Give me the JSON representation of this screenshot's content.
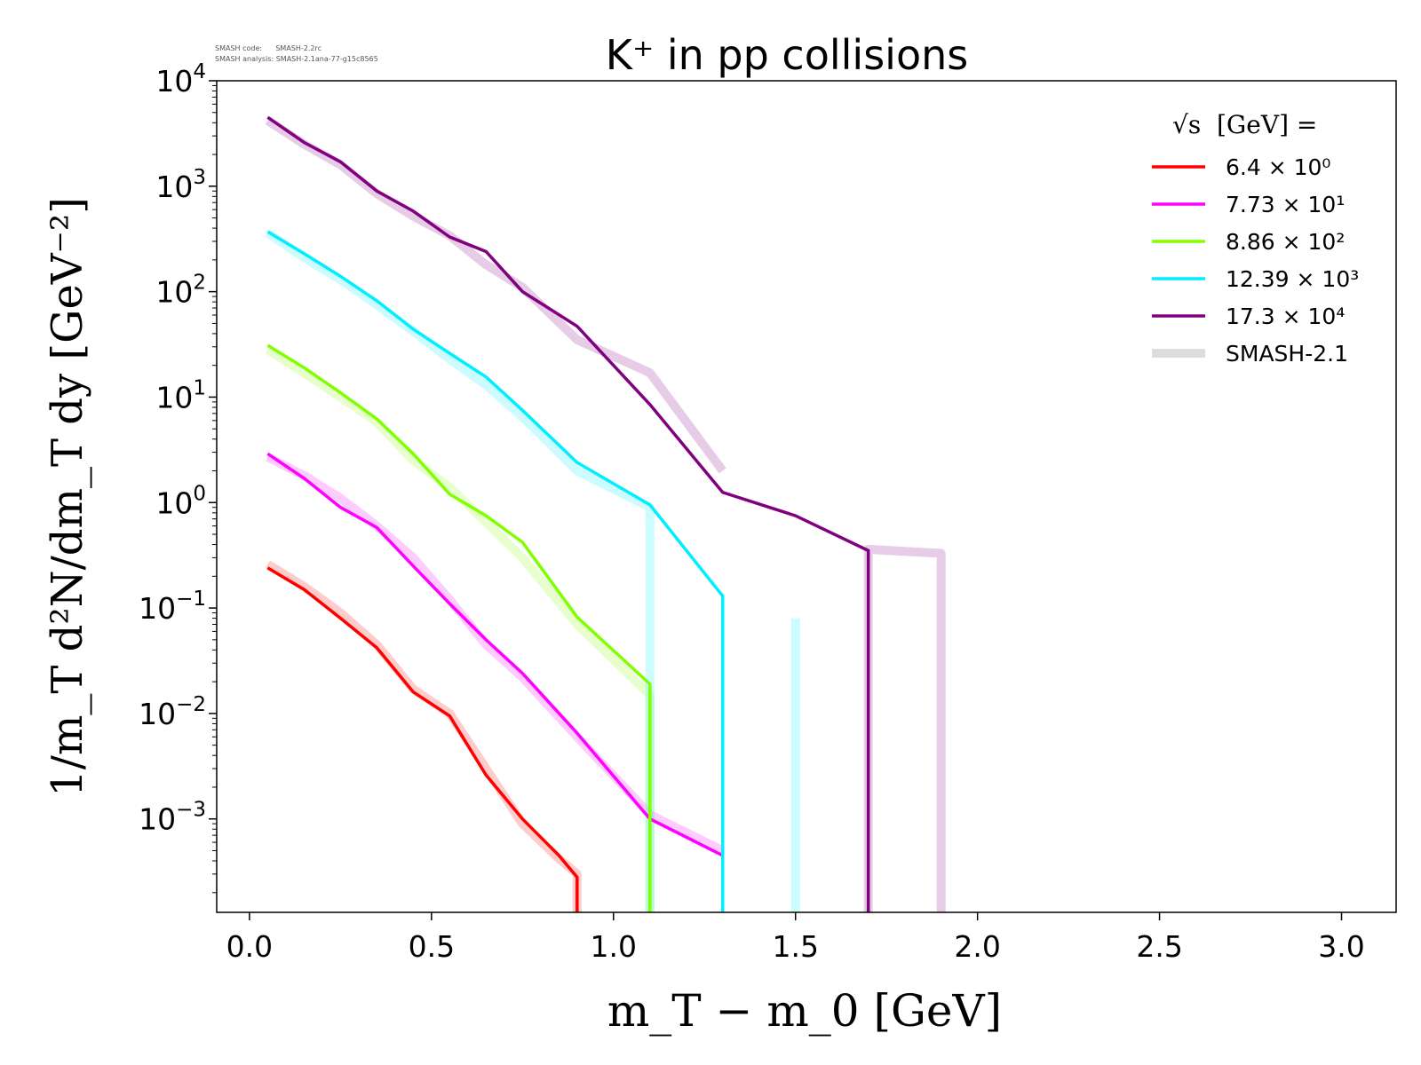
{
  "meta": {
    "code_line": "SMASH code:      SMASH-2.2rc",
    "analysis_line": "SMASH analysis: SMASH-2.1ana-77-g15c8565"
  },
  "chart_data": {
    "type": "line",
    "title": "K⁺ in pp collisions",
    "xlabel": "m_T − m_0 [GeV]",
    "ylabel": "1/m_T d²N/dm_T dy [GeV⁻²]",
    "xlim": [
      -0.09,
      3.15
    ],
    "ylim": [
      0.00013,
      10000
    ],
    "yscale": "log",
    "grid": false,
    "legend_position": "top-right",
    "legend_title": "√s  [GeV] =",
    "x_ticks": [
      {
        "value": 0.0,
        "label": "0.0"
      },
      {
        "value": 0.5,
        "label": "0.5"
      },
      {
        "value": 1.0,
        "label": "1.0"
      },
      {
        "value": 1.5,
        "label": "1.5"
      },
      {
        "value": 2.0,
        "label": "2.0"
      },
      {
        "value": 2.5,
        "label": "2.5"
      },
      {
        "value": 3.0,
        "label": "3.0"
      }
    ],
    "y_ticks": [
      {
        "value": 10000,
        "base": "10",
        "exp": "4"
      },
      {
        "value": 1000,
        "base": "10",
        "exp": "3"
      },
      {
        "value": 100,
        "base": "10",
        "exp": "2"
      },
      {
        "value": 10,
        "base": "10",
        "exp": "1"
      },
      {
        "value": 1,
        "base": "10",
        "exp": "0"
      },
      {
        "value": 0.1,
        "base": "10",
        "exp": "−1"
      },
      {
        "value": 0.01,
        "base": "10",
        "exp": "−2"
      },
      {
        "value": 0.001,
        "base": "10",
        "exp": "−3"
      }
    ],
    "series": [
      {
        "name": "6.4 × 10⁰",
        "color": "#ff0000",
        "x": [
          0.05,
          0.15,
          0.25,
          0.35,
          0.45,
          0.55,
          0.65,
          0.75,
          0.85,
          0.9,
          0.9
        ],
        "y": [
          0.24,
          0.15,
          0.08,
          0.042,
          0.016,
          0.0095,
          0.0026,
          0.001,
          0.00045,
          0.00028,
          0.00013
        ],
        "ref_x": [
          0.05,
          0.15,
          0.25,
          0.35,
          0.45,
          0.55,
          0.65,
          0.75,
          0.85,
          0.9,
          0.9
        ],
        "ref_y": [
          0.26,
          0.16,
          0.09,
          0.045,
          0.017,
          0.01,
          0.003,
          0.0009,
          0.00042,
          0.0003,
          0.00013
        ]
      },
      {
        "name": "7.73 × 10¹",
        "color": "#ff00ff",
        "x": [
          0.05,
          0.15,
          0.25,
          0.35,
          0.45,
          0.55,
          0.65,
          0.75,
          0.9,
          1.1,
          1.3
        ],
        "y": [
          2.9,
          1.7,
          0.9,
          0.58,
          0.25,
          0.11,
          0.05,
          0.024,
          0.0065,
          0.001,
          0.00045
        ],
        "ref_x": [
          0.05,
          0.15,
          0.25,
          0.35,
          0.45,
          0.55,
          0.65,
          0.75,
          0.9,
          1.1,
          1.3
        ],
        "ref_y": [
          2.7,
          1.8,
          1.1,
          0.6,
          0.3,
          0.12,
          0.045,
          0.022,
          0.006,
          0.0011,
          0.0005
        ]
      },
      {
        "name": "8.86 × 10²",
        "color": "#80ff00",
        "x": [
          0.05,
          0.15,
          0.25,
          0.35,
          0.45,
          0.55,
          0.65,
          0.75,
          0.9,
          1.1,
          1.1
        ],
        "y": [
          31,
          19,
          11,
          6.2,
          2.9,
          1.2,
          0.75,
          0.42,
          0.082,
          0.019,
          0.00013
        ],
        "ref_x": [
          0.05,
          0.15,
          0.25,
          0.35,
          0.45,
          0.55,
          0.65,
          0.75,
          0.9,
          1.1,
          1.1
        ],
        "ref_y": [
          28,
          17,
          10,
          5.8,
          2.5,
          1.4,
          0.65,
          0.3,
          0.07,
          0.015,
          0.00013
        ]
      },
      {
        "name": "12.39 × 10³",
        "color": "#00eeff",
        "x": [
          0.05,
          0.15,
          0.25,
          0.35,
          0.45,
          0.55,
          0.65,
          0.75,
          0.9,
          1.1,
          1.3,
          1.3
        ],
        "y": [
          370,
          230,
          140,
          82,
          44,
          26,
          15.5,
          7.5,
          2.4,
          0.95,
          0.13,
          0.00013
        ],
        "ref_x": [
          0.05,
          0.15,
          0.25,
          0.35,
          0.45,
          0.55,
          0.65,
          0.75,
          0.9,
          1.1,
          1.1,
          1.3,
          1.3,
          1.5,
          1.5
        ],
        "ref_y": [
          360,
          210,
          130,
          75,
          42,
          23,
          13,
          6.5,
          2.0,
          0.9,
          0.00013,
          0.00013,
          0.00013,
          0.00013,
          0.08
        ],
        "ref_segments": [
          [
            0,
            11
          ],
          [
            11,
            13
          ],
          [
            13,
            15
          ]
        ]
      },
      {
        "name": "17.3 × 10⁴",
        "color": "#800080",
        "x": [
          0.05,
          0.15,
          0.25,
          0.35,
          0.45,
          0.55,
          0.65,
          0.75,
          0.9,
          1.1,
          1.3,
          1.5,
          1.7,
          1.7
        ],
        "y": [
          4500,
          2600,
          1700,
          900,
          580,
          330,
          240,
          100,
          47,
          8.5,
          1.25,
          0.75,
          0.35,
          0.00013
        ],
        "ref_x": [
          0.05,
          0.15,
          0.25,
          0.35,
          0.45,
          0.55,
          0.65,
          0.75,
          0.9,
          1.1,
          1.3,
          1.3,
          1.7,
          1.7,
          1.9,
          1.9
        ],
        "ref_y": [
          4200,
          2500,
          1600,
          850,
          520,
          340,
          180,
          110,
          35,
          17,
          2.0,
          0.00013,
          0.00013,
          0.36,
          0.33,
          0.00013
        ],
        "ref_segments": [
          [
            0,
            11
          ],
          [
            12,
            16
          ]
        ]
      }
    ],
    "reference_series": {
      "name": "SMASH-2.1",
      "color": "#dddddd"
    }
  }
}
